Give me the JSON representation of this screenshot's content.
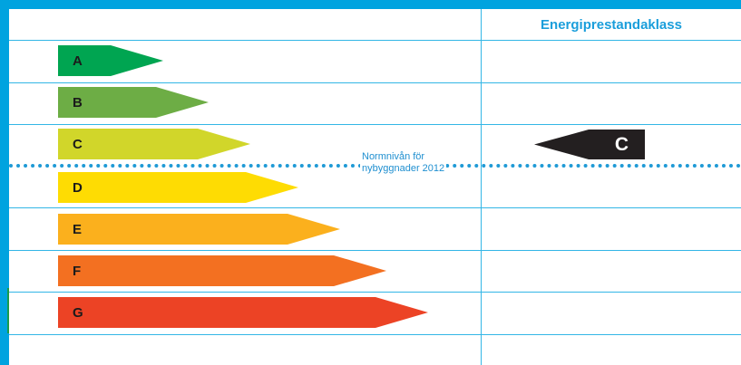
{
  "header": {
    "column_title": "Energiprestandaklass"
  },
  "classes": [
    {
      "label": "A",
      "color": "#00a551"
    },
    {
      "label": "B",
      "color": "#6dad45"
    },
    {
      "label": "C",
      "color": "#d1d62a"
    },
    {
      "label": "D",
      "color": "#fedc03"
    },
    {
      "label": "E",
      "color": "#fbb01d"
    },
    {
      "label": "F",
      "color": "#f37021"
    },
    {
      "label": "G",
      "color": "#ec4325"
    }
  ],
  "norm_line": {
    "text_line1": "Normnivån för",
    "text_line2": "nybyggnader 2012"
  },
  "rating": {
    "label": "C"
  },
  "colors": {
    "frame_blue": "#00a3df",
    "indicator": "#231f20"
  }
}
